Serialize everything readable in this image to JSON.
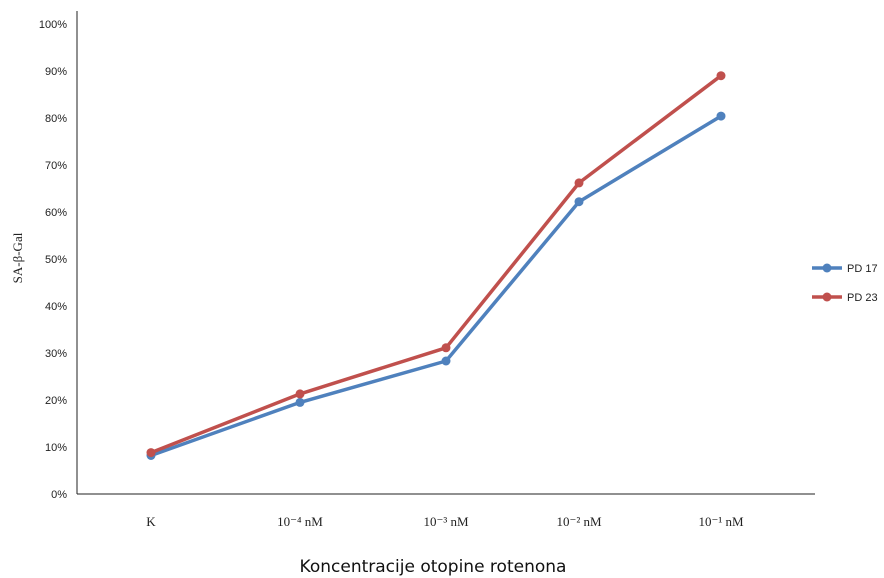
{
  "chart_data": {
    "type": "line",
    "categories": [
      "K",
      "10⁻⁴ nM",
      "10⁻³ nM",
      "10⁻² nM",
      "10⁻¹ nM"
    ],
    "series": [
      {
        "name": "PD 17",
        "values": [
          8.2,
          19.5,
          28.3,
          62.2,
          80.4
        ],
        "color": "#4F81BD"
      },
      {
        "name": "PD 23",
        "values": [
          8.8,
          21.3,
          31.1,
          66.2,
          89.0
        ],
        "color": "#C0504D"
      }
    ],
    "xlabel": "Koncentracije otopine rotenona",
    "ylabel": "SA-β-Gal",
    "ylim": [
      0,
      100
    ],
    "yticks": [
      "0%",
      "10%",
      "20%",
      "30%",
      "40%",
      "50%",
      "60%",
      "70%",
      "80%",
      "90%",
      "100%"
    ],
    "grid": false,
    "legend_position": "right"
  }
}
